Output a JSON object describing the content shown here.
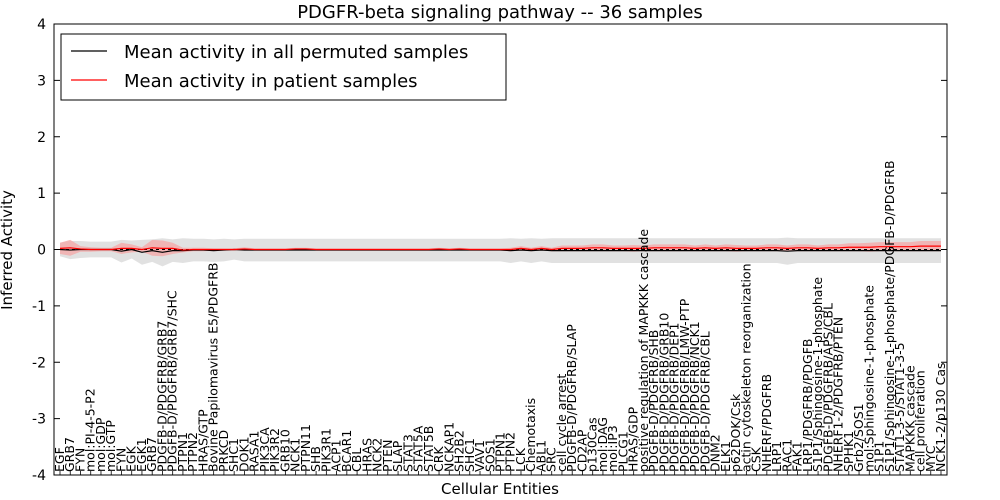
{
  "chart_data": {
    "type": "line",
    "title": "PDGFR-beta signaling pathway -- 36 samples",
    "xlabel": "Cellular Entities",
    "ylabel": "Inferred Activity",
    "ylim": [
      -4,
      4
    ],
    "yticks": [
      -4,
      -3,
      -2,
      -1,
      0,
      1,
      2,
      3,
      4
    ],
    "grid": false,
    "legend_position": "top-left",
    "legend": [
      {
        "label": "Mean activity in all permuted samples",
        "color": "#000000"
      },
      {
        "label": "Mean activity in patient samples",
        "color": "#ff0000"
      }
    ],
    "colors": {
      "permuted_band": "#d9d9d9",
      "patient_band": "#f4a6a6",
      "zero_line": "#000000"
    },
    "categories": [
      "EGF",
      "GRB7",
      "FYN",
      "mol:PI-4-5-P2",
      "mol:GDP",
      "mol:GTP",
      "FYN",
      "EGK",
      "EGK1",
      "GRB7",
      "PDGFB-D/PDGFRB/GRB7",
      "PDGFB-D/PDGFRB/GRB7/SHC",
      "PTPN1",
      "PTPN2",
      "HRAS/GTP",
      "Bovine Papilomavirus E5/PDGFRB",
      "PRKCD",
      "SHC1",
      "DOK1",
      "RASA1",
      "PIK3CA",
      "PIK3R2",
      "GRB10",
      "NCK1",
      "PTPN11",
      "SHB",
      "PIK3R1",
      "ACP1",
      "BCAR1",
      "CBL",
      "HRAS",
      "NCK2",
      "PTEN",
      "SLAP",
      "STAT3",
      "STAT5A",
      "STAT5B",
      "CRK",
      "NCKAP1",
      "SH2B2",
      "SHC1",
      "VAV1",
      "SOS1",
      "PTPN1",
      "PTPN2",
      "LCK",
      "Chemotaxis",
      "ABL1",
      "SRC",
      "cell cycle arrest",
      "PDGFB-D/PDGFRB/SLAP",
      "CD2AP",
      "p130Cas",
      "mol:DAG",
      "mol:IP3",
      "PLCG1",
      "HRAS/GDP",
      "positive regulation of MAPKKK cascade",
      "PDGFB-D/PDGFRB/SHB",
      "PDGFB-D/PDGFRB/GRB10",
      "PDGFB-D/PDGFRB/DEP1",
      "PDGFB-D/PDGFRB/LMW-PTP",
      "PDGFB-D/PDGFRB/NCK1",
      "PDGFB-D/PDGFRB/CBL",
      "DNM2",
      "ELK1",
      "p62DOK/Csk",
      "actin cytoskeleton reorganization",
      "CSK",
      "NHERF/PDGFRB",
      "LRP1",
      "RAC1",
      "FAK1",
      "LRP1/PDGFRB/PDGFB",
      "S1P1/Sphingosine-1-phosphate",
      "PDGFB-D/PDGFRB/APS/CBL",
      "NHERF1-2/PDGFRB/PTEN",
      "SPHK1",
      "Grb2/SOS1",
      "mol:Sphingosine-1-phosphate",
      "S1P1",
      "S1P1/Sphingosine-1-phosphate/PDGFB-D/PDGFRB",
      "STAT1-3-5/STAT1-3-5",
      "MAPKKK cascade",
      "cell proliferation",
      "MYC",
      "NCK1-2/p130 Cas"
    ],
    "label_visible": [
      true,
      true,
      true,
      true,
      true,
      true,
      true,
      true,
      true,
      true,
      true,
      true,
      true,
      true,
      true,
      true,
      true,
      true,
      true,
      true,
      true,
      true,
      true,
      true,
      true,
      true,
      true,
      true,
      true,
      true,
      true,
      true,
      true,
      true,
      true,
      true,
      true,
      true,
      true,
      true,
      true,
      true,
      true,
      true,
      true,
      true,
      true,
      true,
      true,
      true,
      true,
      true,
      true,
      true,
      true,
      true,
      true,
      true,
      true,
      true,
      true,
      true,
      true,
      true,
      true,
      true,
      true,
      true,
      true,
      true,
      true,
      true,
      true,
      true,
      true,
      true,
      true,
      true,
      true,
      true,
      true,
      true,
      true,
      true,
      true,
      true,
      true
    ],
    "series": [
      {
        "name": "Mean activity in all permuted samples",
        "values": [
          0,
          -0.01,
          0,
          0,
          0,
          0,
          -0.03,
          0,
          -0.05,
          -0.02,
          -0.05,
          -0.02,
          -0.02,
          -0.01,
          -0.01,
          -0.02,
          -0.01,
          0,
          -0.01,
          -0.01,
          -0.01,
          -0.01,
          -0.01,
          -0.01,
          -0.01,
          -0.01,
          -0.01,
          -0.01,
          -0.01,
          -0.01,
          -0.01,
          -0.01,
          -0.01,
          -0.01,
          -0.01,
          -0.01,
          -0.01,
          -0.01,
          -0.01,
          -0.01,
          -0.01,
          -0.01,
          -0.01,
          -0.01,
          -0.02,
          -0.01,
          -0.02,
          -0.01,
          -0.02,
          -0.02,
          -0.02,
          -0.02,
          -0.02,
          -0.02,
          -0.02,
          -0.02,
          -0.02,
          -0.02,
          -0.02,
          -0.02,
          -0.02,
          -0.02,
          -0.02,
          -0.02,
          -0.02,
          -0.02,
          -0.02,
          -0.02,
          -0.02,
          -0.02,
          -0.02,
          -0.03,
          -0.02,
          -0.02,
          -0.02,
          -0.02,
          -0.02,
          -0.02,
          -0.02,
          -0.02,
          -0.02,
          -0.02,
          -0.02,
          -0.02,
          -0.02,
          -0.02,
          -0.02
        ],
        "band": [
          0.12,
          0.16,
          0.15,
          0.14,
          0.14,
          0.14,
          0.2,
          0.16,
          0.22,
          0.2,
          0.25,
          0.2,
          0.22,
          0.2,
          0.2,
          0.2,
          0.2,
          0.18,
          0.2,
          0.2,
          0.2,
          0.2,
          0.2,
          0.2,
          0.2,
          0.2,
          0.2,
          0.2,
          0.2,
          0.2,
          0.2,
          0.2,
          0.2,
          0.2,
          0.2,
          0.2,
          0.2,
          0.2,
          0.2,
          0.2,
          0.2,
          0.2,
          0.2,
          0.2,
          0.22,
          0.2,
          0.22,
          0.2,
          0.22,
          0.22,
          0.22,
          0.22,
          0.22,
          0.22,
          0.22,
          0.22,
          0.22,
          0.22,
          0.22,
          0.22,
          0.22,
          0.22,
          0.22,
          0.22,
          0.22,
          0.22,
          0.22,
          0.22,
          0.22,
          0.22,
          0.22,
          0.24,
          0.22,
          0.22,
          0.22,
          0.22,
          0.22,
          0.22,
          0.22,
          0.22,
          0.22,
          0.22,
          0.22,
          0.22,
          0.22,
          0.22,
          0.22
        ]
      },
      {
        "name": "Mean activity in patient samples",
        "values": [
          0.02,
          0.03,
          0.01,
          0,
          0,
          0,
          0.02,
          0.02,
          0,
          0.03,
          0.02,
          0.02,
          -0.01,
          0,
          0,
          0,
          0,
          0,
          0.01,
          0,
          0,
          0,
          0,
          0.01,
          0.01,
          0,
          0,
          0,
          0,
          0,
          0,
          0,
          0,
          0,
          0,
          0,
          0,
          0.01,
          0,
          0.01,
          0,
          0,
          0,
          0,
          0,
          0.02,
          0,
          0.02,
          0,
          0.02,
          0.02,
          0.02,
          0.03,
          0.03,
          0.02,
          0.02,
          0.02,
          0.02,
          0.03,
          0.03,
          0.03,
          0.03,
          0.02,
          0.03,
          0.02,
          0.03,
          0.02,
          0.02,
          0.02,
          0.03,
          0.03,
          0.02,
          0.03,
          0.03,
          0.02,
          0.03,
          0.03,
          0.04,
          0.04,
          0.04,
          0.05,
          0.05,
          0.05,
          0.05,
          0.06,
          0.06,
          0.06
        ],
        "band": [
          0.1,
          0.14,
          0.05,
          0.04,
          0.03,
          0.03,
          0.1,
          0.07,
          0.04,
          0.14,
          0.14,
          0.1,
          0.04,
          0.03,
          0.03,
          0.02,
          0.02,
          0.02,
          0.03,
          0.02,
          0.02,
          0.02,
          0.02,
          0.02,
          0.02,
          0.02,
          0.02,
          0.02,
          0.02,
          0.02,
          0.02,
          0.02,
          0.02,
          0.02,
          0.02,
          0.02,
          0.02,
          0.02,
          0.02,
          0.02,
          0.02,
          0.02,
          0.02,
          0.02,
          0.03,
          0.04,
          0.03,
          0.04,
          0.03,
          0.05,
          0.05,
          0.05,
          0.06,
          0.06,
          0.05,
          0.05,
          0.06,
          0.05,
          0.06,
          0.06,
          0.06,
          0.06,
          0.05,
          0.06,
          0.05,
          0.06,
          0.06,
          0.05,
          0.05,
          0.06,
          0.06,
          0.05,
          0.06,
          0.06,
          0.05,
          0.06,
          0.06,
          0.07,
          0.07,
          0.08,
          0.08,
          0.08,
          0.08,
          0.08,
          0.09,
          0.09,
          0.09
        ]
      }
    ]
  }
}
